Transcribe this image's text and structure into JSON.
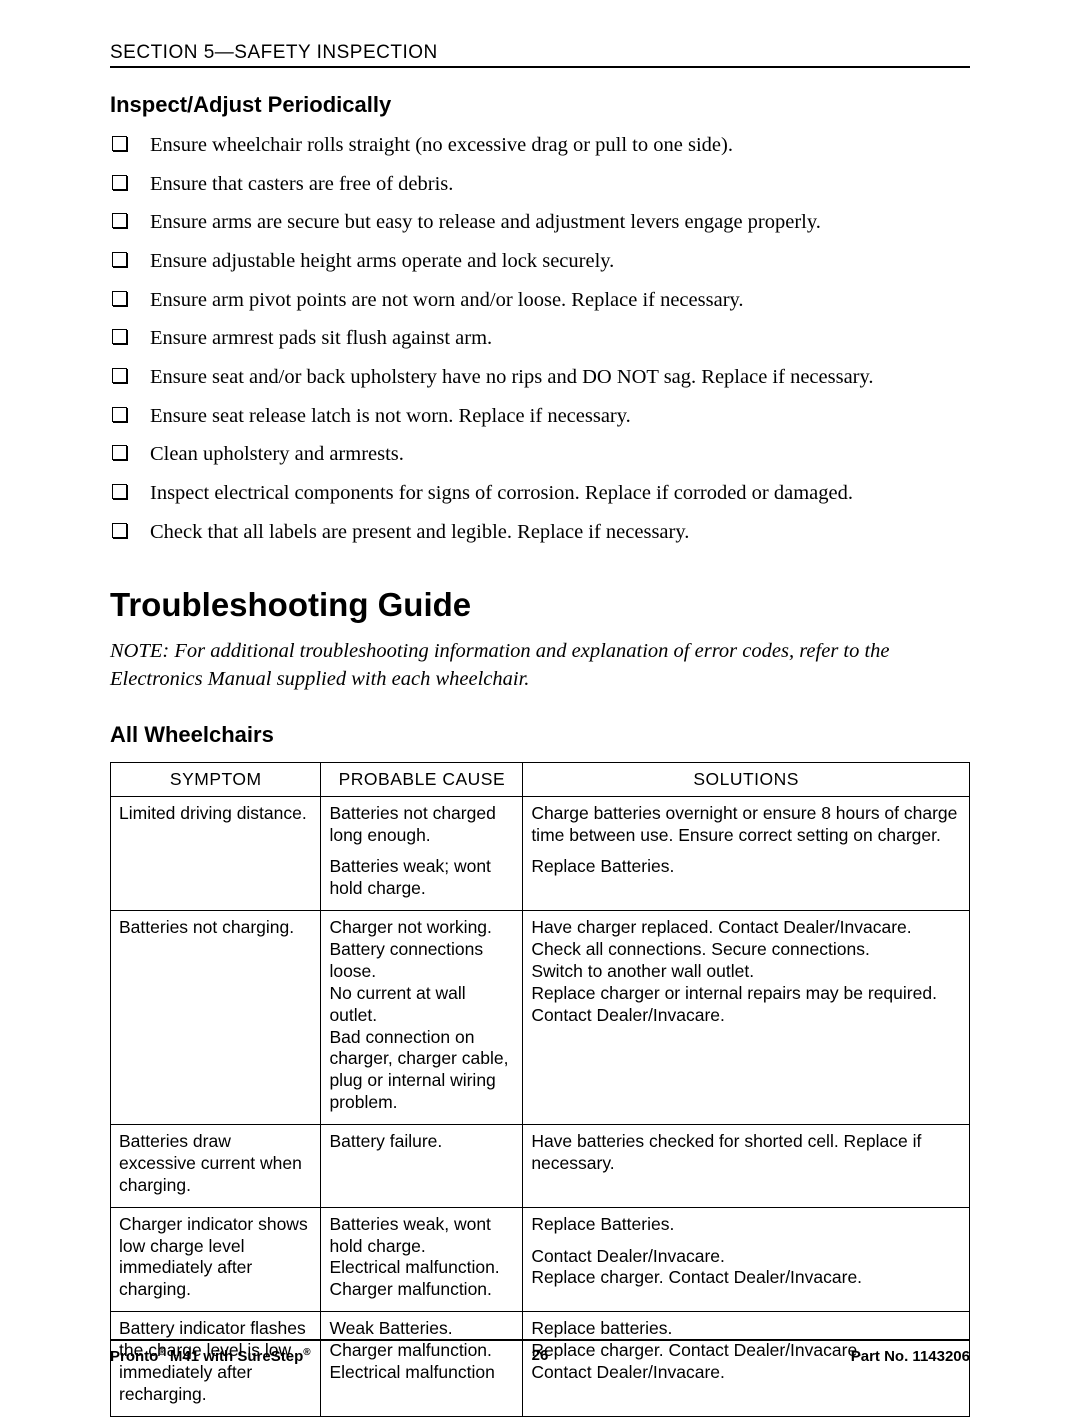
{
  "section_header": "SECTION 5—SAFETY INSPECTION",
  "subheading_inspect": "Inspect/Adjust Periodically",
  "checklist": [
    "Ensure wheelchair rolls straight (no excessive drag or pull to one side).",
    "Ensure that casters are free of debris.",
    "Ensure arms are secure but easy to release and adjustment levers engage properly.",
    "Ensure adjustable height arms operate and lock securely.",
    "Ensure arm pivot points are not worn and/or loose. Replace if necessary.",
    "Ensure armrest pads sit flush against arm.",
    "Ensure seat and/or back upholstery have no rips and DO NOT sag. Replace if necessary.",
    "Ensure seat release latch is not worn. Replace if necessary.",
    "Clean upholstery and armrests.",
    "Inspect electrical components for signs of corrosion. Replace if corroded or damaged.",
    "Check that all labels are present and legible. Replace if necessary."
  ],
  "guide_title": "Troubleshooting Guide",
  "note_text": "NOTE: For additional troubleshooting information and explanation of error codes, refer to the Electronics Manual supplied with each wheelchair.",
  "subheading_all": "All Wheelchairs",
  "table": {
    "headers": {
      "symptom": "SYMPTOM",
      "cause": "PROBABLE CAUSE",
      "solutions": "SOLUTIONS"
    },
    "rows": [
      {
        "symptom": [
          "Limited driving distance."
        ],
        "cause": [
          "Batteries not charged long enough.",
          "Batteries weak; wont hold charge."
        ],
        "solutions": [
          "Charge batteries overnight or ensure 8 hours of charge time between use. Ensure correct setting on charger.",
          "Replace Batteries."
        ]
      },
      {
        "symptom": [
          "Batteries not charging."
        ],
        "cause": [
          "Charger not working.\nBattery connections loose.\nNo current at wall outlet.\nBad connection on charger, charger cable, plug or internal wiring problem."
        ],
        "solutions": [
          "Have charger replaced. Contact Dealer/Invacare.\nCheck all connections. Secure connections.\nSwitch to another wall outlet.\nReplace charger or internal repairs may be required. Contact Dealer/Invacare."
        ]
      },
      {
        "symptom": [
          "Batteries draw excessive current when charging."
        ],
        "cause": [
          "Battery failure."
        ],
        "solutions": [
          "Have batteries checked for shorted cell. Replace if necessary."
        ]
      },
      {
        "symptom": [
          "Charger indicator shows low charge level immediately after charging."
        ],
        "cause": [
          "Batteries weak, wont hold charge.\nElectrical malfunction.\nCharger malfunction."
        ],
        "solutions": [
          "Replace Batteries.",
          "Contact Dealer/Invacare.\nReplace charger. Contact Dealer/Invacare."
        ]
      },
      {
        "symptom": [
          "Battery indicator flashes the charge level is low immediately after recharging."
        ],
        "cause": [
          "Weak Batteries.\nCharger malfunction.\nElectrical malfunction"
        ],
        "solutions": [
          "Replace batteries.\nReplace charger. Contact Dealer/Invacare.\nContact Dealer/Invacare."
        ]
      }
    ]
  },
  "footer": {
    "left_a": "Pronto",
    "left_b": " M41 with SureStep",
    "page": "26",
    "right": "Part No. 1143206"
  }
}
